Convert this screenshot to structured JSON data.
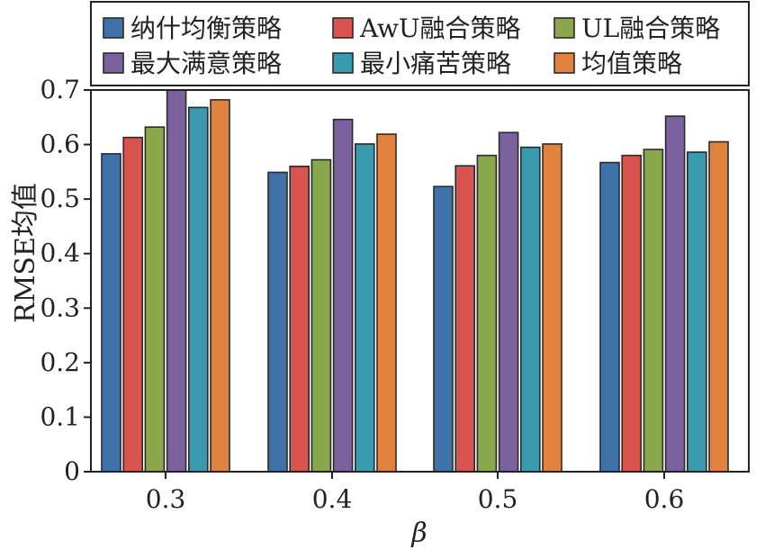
{
  "chart_data": {
    "type": "bar",
    "categories": [
      "0.3",
      "0.4",
      "0.5",
      "0.6"
    ],
    "xlabel": "β",
    "ylabel": "RMSE均值",
    "ylim": [
      0,
      0.7
    ],
    "yticks": [
      "0",
      "0.1",
      "0.2",
      "0.3",
      "0.4",
      "0.5",
      "0.6",
      "0.7"
    ],
    "legend_position": "top",
    "series": [
      {
        "name": "纳什均衡策略",
        "color": "#3f72a8",
        "values": [
          0.583,
          0.549,
          0.523,
          0.567
        ]
      },
      {
        "name": "AwU融合策略",
        "color": "#d9544f",
        "values": [
          0.613,
          0.56,
          0.561,
          0.58
        ]
      },
      {
        "name": "UL融合策略",
        "color": "#8aa84b",
        "values": [
          0.632,
          0.572,
          0.58,
          0.591
        ]
      },
      {
        "name": "最大满意策略",
        "color": "#7b619e",
        "values": [
          0.7,
          0.646,
          0.622,
          0.652
        ]
      },
      {
        "name": "最小痛苦策略",
        "color": "#3a9bb0",
        "values": [
          0.668,
          0.601,
          0.595,
          0.586
        ]
      },
      {
        "name": "均值策略",
        "color": "#e1833e",
        "values": [
          0.682,
          0.619,
          0.601,
          0.605
        ]
      }
    ]
  }
}
